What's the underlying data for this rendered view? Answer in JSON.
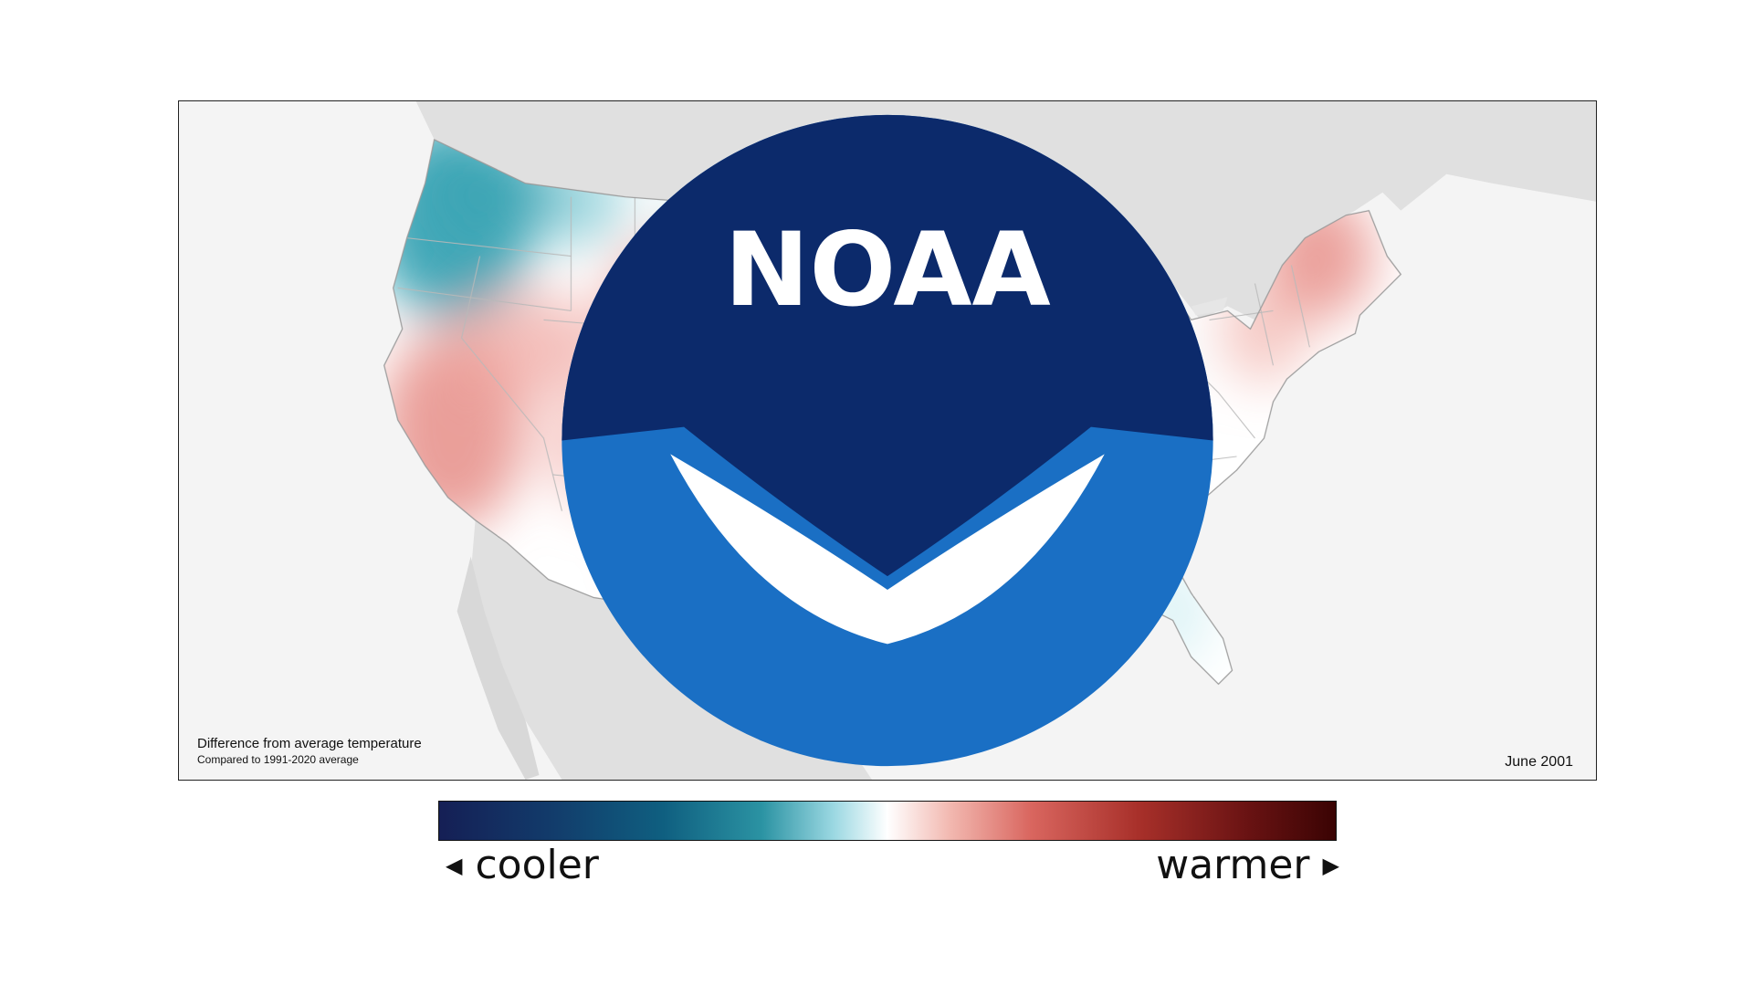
{
  "map": {
    "caption_title": "Difference from average temperature",
    "caption_subtitle": "Compared to 1991-2020 average",
    "date": "June 2001",
    "logo_text": "NOAA"
  },
  "legend": {
    "cooler_label": "cooler",
    "warmer_label": "warmer",
    "colors": [
      "#151f55",
      "#0f5f80",
      "#2b93a3",
      "#9bd8e2",
      "#ffffff",
      "#f2b8b0",
      "#d9665f",
      "#a8302a",
      "#3a0303"
    ]
  },
  "icons": {
    "cooler_arrow": "triangle-left-icon",
    "warmer_arrow": "triangle-right-icon"
  }
}
